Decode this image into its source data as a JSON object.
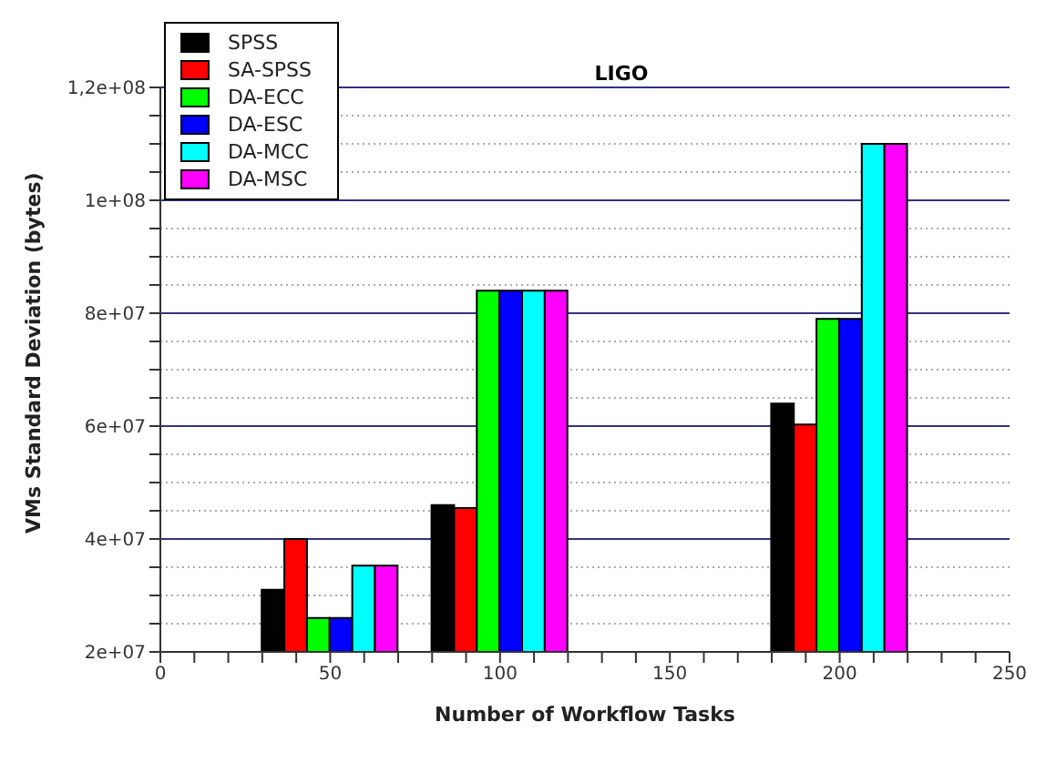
{
  "chart_data": {
    "type": "bar",
    "title": "LIGO",
    "xlabel": "Number of Workflow Tasks",
    "ylabel": "VMs Standard Deviation (bytes)",
    "x": [
      50,
      100,
      200
    ],
    "series": [
      {
        "name": "SPSS",
        "color": "#000000",
        "values": [
          31000000,
          46000000,
          64000000
        ]
      },
      {
        "name": "SA-SPSS",
        "color": "#ff0000",
        "values": [
          40000000,
          45500000,
          60300000
        ]
      },
      {
        "name": "DA-ECC",
        "color": "#00ff00",
        "values": [
          26000000,
          84000000,
          79000000
        ]
      },
      {
        "name": "DA-ESC",
        "color": "#0000ff",
        "values": [
          26000000,
          84000000,
          79000000
        ]
      },
      {
        "name": "DA-MCC",
        "color": "#00ffff",
        "values": [
          35300000,
          84000000,
          110000000
        ]
      },
      {
        "name": "DA-MSC",
        "color": "#ff00ff",
        "values": [
          35300000,
          84000000,
          110000000
        ]
      }
    ],
    "xlim": [
      0,
      250
    ],
    "xticks": [
      0,
      {
        "value": 10,
        "label": null
      },
      {
        "value": 20,
        "label": null
      },
      {
        "value": 30,
        "label": null
      },
      {
        "value": 40,
        "label": null
      },
      50,
      {
        "value": 60,
        "label": null
      },
      {
        "value": 70,
        "label": null
      },
      {
        "value": 80,
        "label": null
      },
      {
        "value": 90,
        "label": null
      },
      100,
      {
        "value": 110,
        "label": null
      },
      {
        "value": 120,
        "label": null
      },
      {
        "value": 130,
        "label": null
      },
      {
        "value": 140,
        "label": null
      },
      150,
      {
        "value": 160,
        "label": null
      },
      {
        "value": 170,
        "label": null
      },
      {
        "value": 180,
        "label": null
      },
      {
        "value": 190,
        "label": null
      },
      200,
      {
        "value": 210,
        "label": null
      },
      {
        "value": 220,
        "label": null
      },
      {
        "value": 230,
        "label": null
      },
      {
        "value": 240,
        "label": null
      },
      250
    ],
    "ylim": [
      20000000,
      120000000
    ],
    "yticks": [
      {
        "value": 20000000,
        "label": "2e+07"
      },
      {
        "value": 25000000,
        "label": null
      },
      {
        "value": 30000000,
        "label": null
      },
      {
        "value": 35000000,
        "label": null
      },
      {
        "value": 40000000,
        "label": "4e+07"
      },
      {
        "value": 45000000,
        "label": null
      },
      {
        "value": 50000000,
        "label": null
      },
      {
        "value": 55000000,
        "label": null
      },
      {
        "value": 60000000,
        "label": "6e+07"
      },
      {
        "value": 65000000,
        "label": null
      },
      {
        "value": 70000000,
        "label": null
      },
      {
        "value": 75000000,
        "label": null
      },
      {
        "value": 80000000,
        "label": "8e+07"
      },
      {
        "value": 85000000,
        "label": null
      },
      {
        "value": 90000000,
        "label": null
      },
      {
        "value": 95000000,
        "label": null
      },
      {
        "value": 100000000,
        "label": "1e+08"
      },
      {
        "value": 105000000,
        "label": null
      },
      {
        "value": 110000000,
        "label": null
      },
      {
        "value": 115000000,
        "label": null
      },
      {
        "value": 120000000,
        "label": "1,2e+08"
      }
    ],
    "grid": "y",
    "legend": "top left"
  }
}
